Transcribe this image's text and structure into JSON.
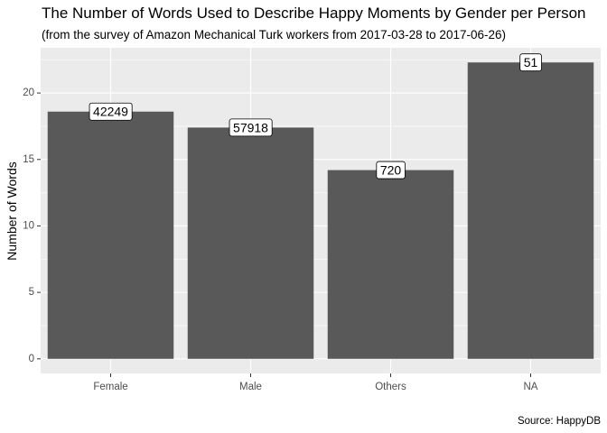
{
  "chart_data": {
    "type": "bar",
    "title": "The Number of Words Used to Describe Happy Moments by Gender per Person",
    "subtitle": "(from the survey of Amazon Mechanical Turk workers from 2017-03-28 to 2017-06-26)",
    "xlabel": "",
    "ylabel": "Number of Words",
    "caption": "Source: HappyDB",
    "categories": [
      "Female",
      "Male",
      "Others",
      "NA"
    ],
    "values": [
      18.6,
      17.4,
      14.2,
      22.3
    ],
    "data_labels": [
      "42249",
      "57918",
      "720",
      "51"
    ],
    "ylim": [
      -1.1,
      23.4
    ],
    "yticks": [
      0,
      5,
      10,
      15,
      20
    ],
    "yticks_labels": [
      "0",
      "5",
      "10",
      "15",
      "20"
    ],
    "grid": true,
    "colors": {
      "panel_bg": "#ebebeb",
      "grid_major": "#ffffff",
      "bar_fill": "#595959",
      "label_bg": "#ffffff",
      "label_border": "#000000"
    }
  }
}
